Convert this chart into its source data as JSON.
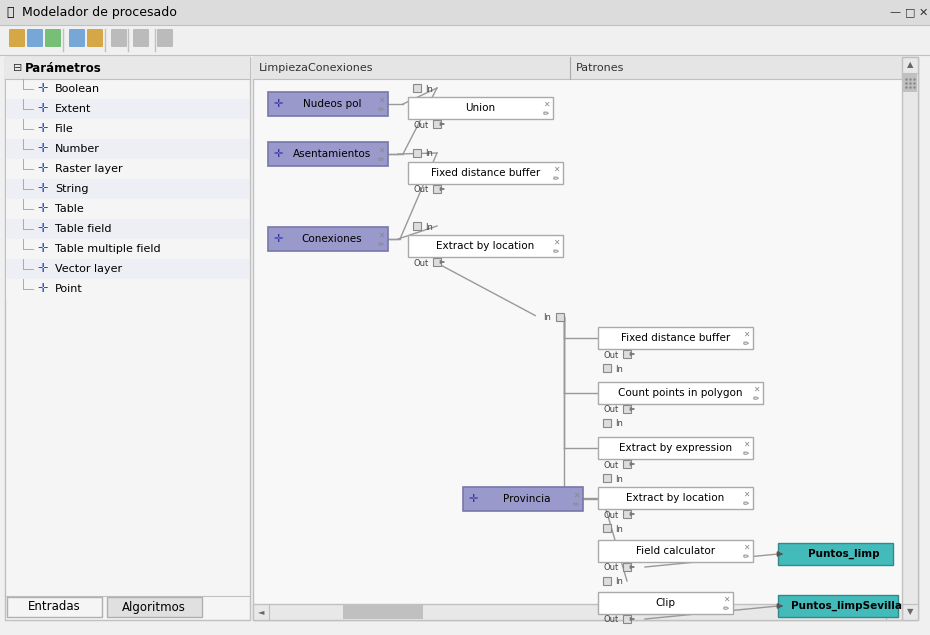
{
  "title": "Modelador de procesado",
  "window_bg": "#f0f0f0",
  "titlebar_bg": "#e8e8e8",
  "toolbar_bg": "#f0f0f0",
  "left_panel_bg": "#ffffff",
  "left_panel_border": "#c8c8c8",
  "canvas_bg": "#ffffff",
  "canvas_border": "#c0c0c0",
  "left_panel_label": "Parámetros",
  "left_panel_items": [
    "Boolean",
    "Extent",
    "File",
    "Number",
    "Raster layer",
    "String",
    "Table",
    "Table field",
    "Table multiple field",
    "Vector layer",
    "Point"
  ],
  "tab_labels": [
    "Entradas",
    "Algoritmos"
  ],
  "section_labels": [
    "LimpiezaConexiones",
    "Patrones"
  ],
  "input_node_color": "#9999cc",
  "input_node_border": "#7777aa",
  "process_node_color": "#ffffff",
  "process_node_border": "#aaaaaa",
  "output_node_color": "#44bbbb",
  "output_node_border": "#338888",
  "connector_color": "#888888",
  "line_color": "#999999"
}
